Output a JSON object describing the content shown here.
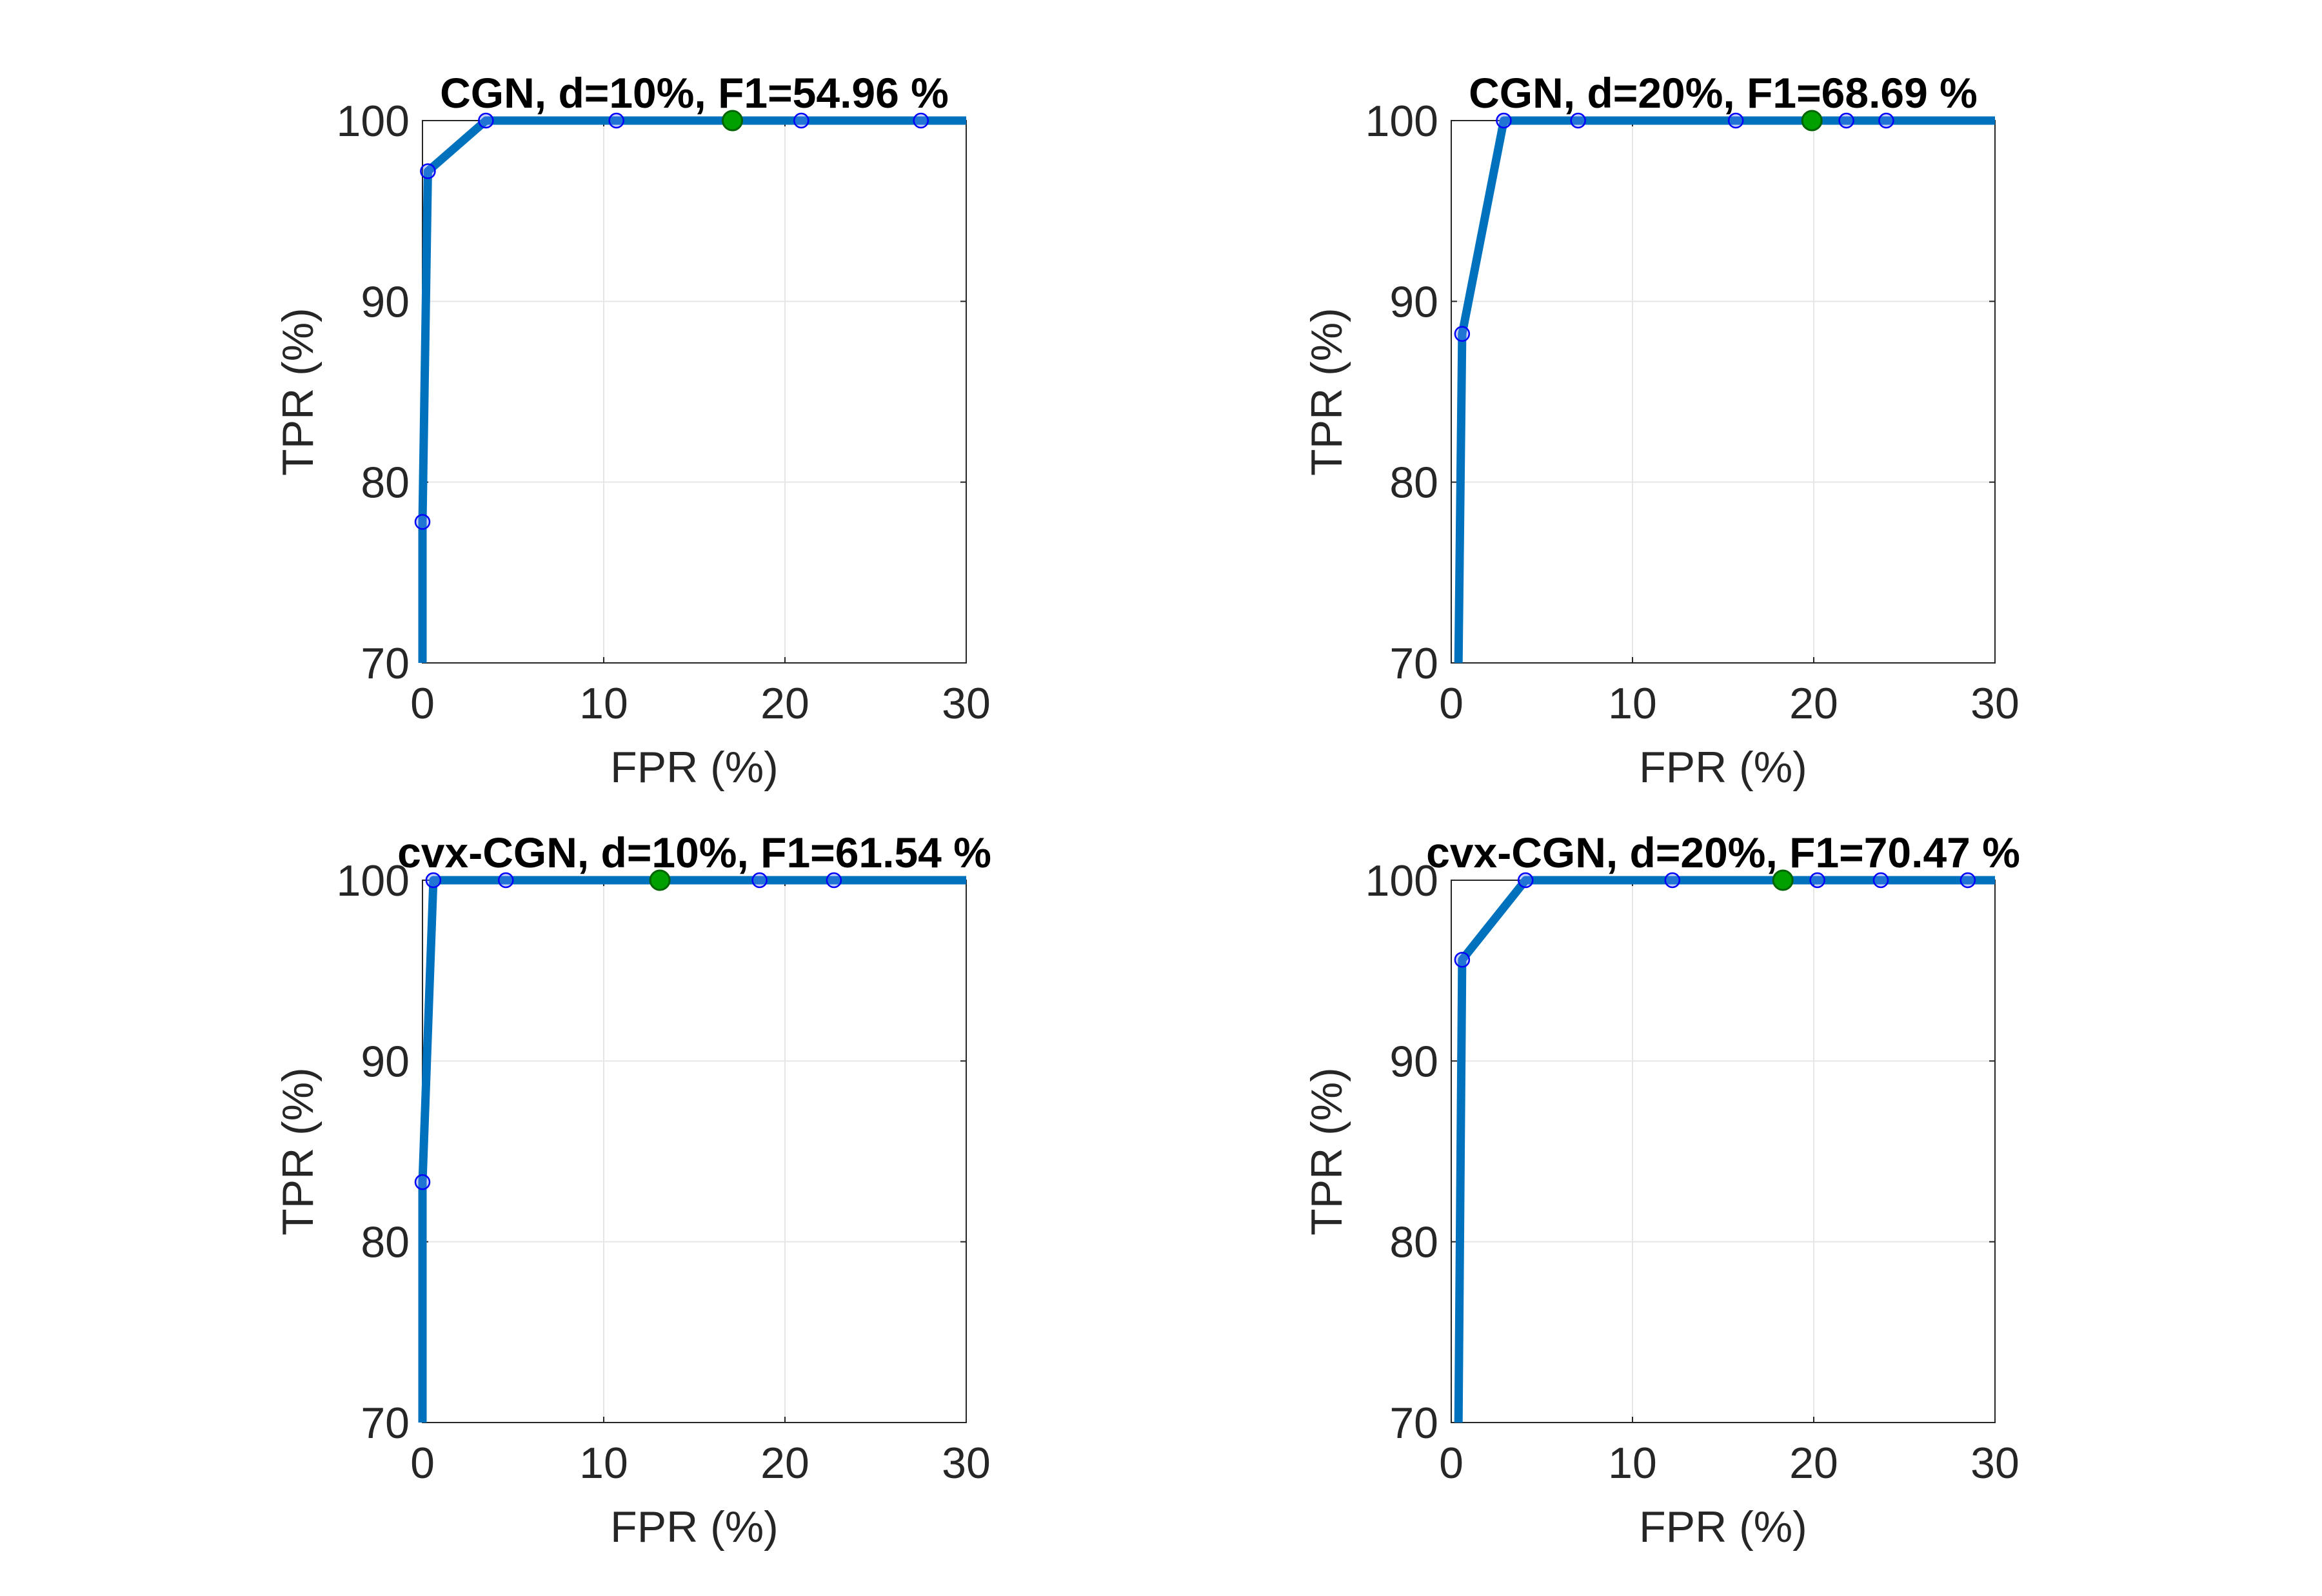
{
  "chart_data": [
    {
      "type": "line",
      "title": "CGN, d=10%, F1=54.96 %",
      "xlabel": "FPR (%)",
      "ylabel": "TPR (%)",
      "xlim": [
        0,
        30
      ],
      "ylim": [
        70,
        100
      ],
      "xticks": [
        "0",
        "10",
        "20",
        "30"
      ],
      "yticks": [
        "70",
        "80",
        "90",
        "100"
      ],
      "grid": true,
      "line_color": "#0072BD",
      "marker_color": "#0000FF",
      "highlight_color": "#00A000",
      "x": [
        0.0,
        0.0,
        0.3,
        3.5,
        10.7,
        17.1,
        20.9,
        27.5,
        30.0
      ],
      "y": [
        70.0,
        77.8,
        97.2,
        100,
        100,
        100,
        100,
        100,
        100
      ],
      "markers_x": [
        0.0,
        0.3,
        3.5,
        10.7,
        17.1,
        20.9,
        27.5
      ],
      "markers_y": [
        77.8,
        97.2,
        100,
        100,
        100,
        100,
        100
      ],
      "highlight": {
        "x": 17.1,
        "y": 100
      }
    },
    {
      "type": "line",
      "title": "CGN, d=20%, F1=68.69 %",
      "xlabel": "FPR (%)",
      "ylabel": "TPR (%)",
      "xlim": [
        0,
        30
      ],
      "ylim": [
        70,
        100
      ],
      "xticks": [
        "0",
        "10",
        "20",
        "30"
      ],
      "yticks": [
        "70",
        "80",
        "90",
        "100"
      ],
      "grid": true,
      "line_color": "#0072BD",
      "marker_color": "#0000FF",
      "highlight_color": "#00A000",
      "x": [
        0.4,
        0.6,
        2.9,
        7.0,
        15.7,
        19.9,
        21.8,
        24.0,
        30.0
      ],
      "y": [
        70.0,
        88.2,
        100,
        100,
        100,
        100,
        100,
        100,
        100
      ],
      "markers_x": [
        0.6,
        2.9,
        7.0,
        15.7,
        19.9,
        21.8,
        24.0
      ],
      "markers_y": [
        88.2,
        100,
        100,
        100,
        100,
        100,
        100
      ],
      "highlight": {
        "x": 19.9,
        "y": 100
      }
    },
    {
      "type": "line",
      "title": "cvx-CGN, d=10%, F1=61.54 %",
      "xlabel": "FPR (%)",
      "ylabel": "TPR (%)",
      "xlim": [
        0,
        30
      ],
      "ylim": [
        70,
        100
      ],
      "xticks": [
        "0",
        "10",
        "20",
        "30"
      ],
      "yticks": [
        "70",
        "80",
        "90",
        "100"
      ],
      "grid": true,
      "line_color": "#0072BD",
      "marker_color": "#0000FF",
      "highlight_color": "#00A000",
      "x": [
        0.0,
        0.0,
        0.6,
        4.6,
        13.1,
        18.6,
        22.7,
        30.0
      ],
      "y": [
        70.0,
        83.3,
        100,
        100,
        100,
        100,
        100,
        100
      ],
      "markers_x": [
        0.0,
        0.6,
        4.6,
        13.1,
        18.6,
        22.7
      ],
      "markers_y": [
        83.3,
        100,
        100,
        100,
        100,
        100
      ],
      "highlight": {
        "x": 13.1,
        "y": 100
      }
    },
    {
      "type": "line",
      "title": "cvx-CGN, d=20%, F1=70.47 %",
      "xlabel": "FPR (%)",
      "ylabel": "TPR (%)",
      "xlim": [
        0,
        30
      ],
      "ylim": [
        70,
        100
      ],
      "xticks": [
        "0",
        "10",
        "20",
        "30"
      ],
      "yticks": [
        "70",
        "80",
        "90",
        "100"
      ],
      "grid": true,
      "line_color": "#0072BD",
      "marker_color": "#0000FF",
      "highlight_color": "#00A000",
      "x": [
        0.4,
        0.6,
        4.1,
        12.2,
        18.3,
        20.2,
        23.7,
        28.5,
        30.0
      ],
      "y": [
        70.0,
        95.6,
        100,
        100,
        100,
        100,
        100,
        100,
        100
      ],
      "markers_x": [
        0.6,
        4.1,
        12.2,
        18.3,
        20.2,
        23.7,
        28.5
      ],
      "markers_y": [
        95.6,
        100,
        100,
        100,
        100,
        100,
        100
      ],
      "highlight": {
        "x": 18.3,
        "y": 100
      }
    }
  ]
}
